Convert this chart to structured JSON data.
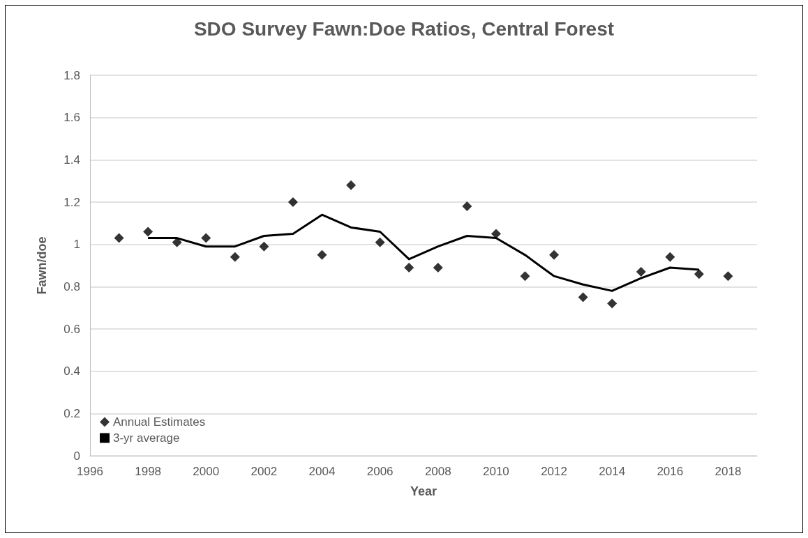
{
  "chart_data": {
    "type": "scatter",
    "title": "SDO Survey Fawn:Doe Ratios, Central Forest",
    "xlabel": "Year",
    "ylabel": "Fawn/doe",
    "xlim": [
      1996,
      2019
    ],
    "xticks": [
      1996,
      1998,
      2000,
      2002,
      2004,
      2006,
      2008,
      2010,
      2012,
      2014,
      2016,
      2018
    ],
    "ylim": [
      0,
      1.8
    ],
    "yticks": [
      0,
      0.2,
      0.4,
      0.6,
      0.8,
      1,
      1.2,
      1.4,
      1.6,
      1.8
    ],
    "grid": "y",
    "legend": "bottom left",
    "series": [
      {
        "name": "Annual Estimates",
        "marker": "diamond",
        "color": "#000000",
        "x": [
          1997,
          1998,
          1999,
          2000,
          2001,
          2002,
          2003,
          2004,
          2005,
          2006,
          2007,
          2008,
          2009,
          2010,
          2011,
          2012,
          2013,
          2014,
          2015,
          2016,
          2017,
          2018
        ],
        "values": [
          1.03,
          1.06,
          1.01,
          1.03,
          0.94,
          0.99,
          1.2,
          0.95,
          1.28,
          1.01,
          0.89,
          0.89,
          1.18,
          1.05,
          0.85,
          0.95,
          0.75,
          0.72,
          0.87,
          0.94,
          0.86,
          0.85
        ]
      },
      {
        "name": "3-yr average",
        "type": "line",
        "marker": "none",
        "line_style": "solid",
        "color": "#000000",
        "x": [
          1998,
          1999,
          2000,
          2001,
          2002,
          2003,
          2004,
          2005,
          2006,
          2007,
          2008,
          2009,
          2010,
          2011,
          2012,
          2013,
          2014,
          2015,
          2016,
          2017
        ],
        "values": [
          1.03,
          1.03,
          0.99,
          0.99,
          1.04,
          1.05,
          1.14,
          1.08,
          1.06,
          0.93,
          0.99,
          1.04,
          1.03,
          0.95,
          0.85,
          0.81,
          0.78,
          0.84,
          0.89,
          0.88
        ]
      }
    ]
  }
}
